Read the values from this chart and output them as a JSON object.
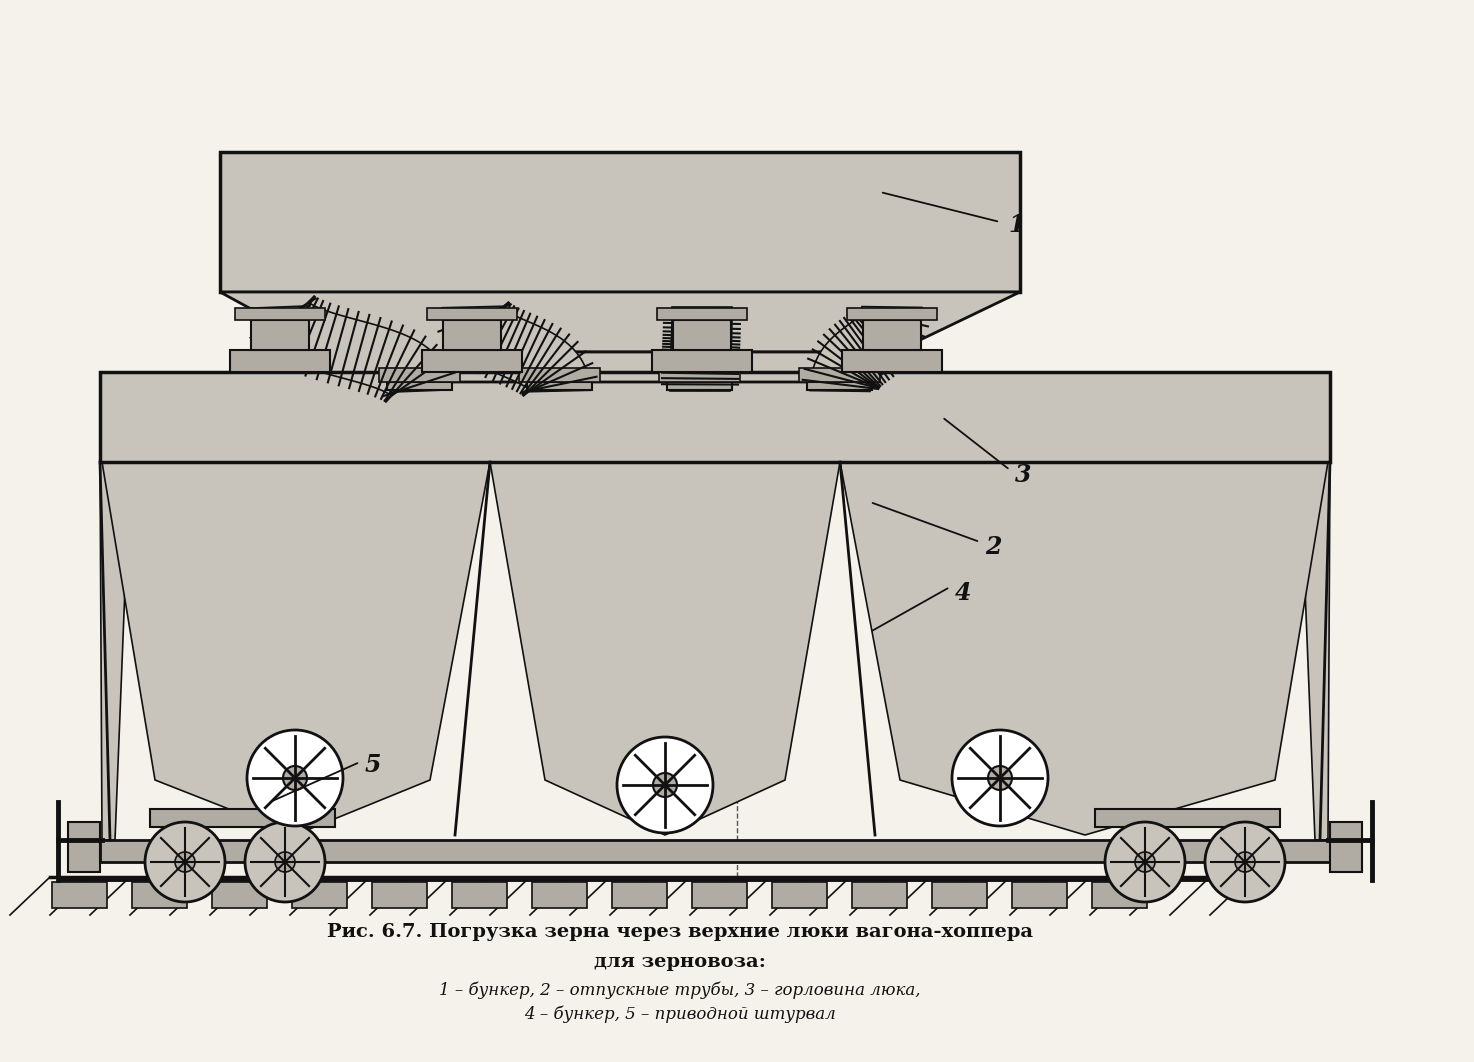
{
  "bg_color": "#f5f2ec",
  "line_color": "#111111",
  "fill_gray_light": "#c8c4bc",
  "fill_gray_mid": "#b0aca4",
  "fill_white": "#ffffff",
  "title_bold": "Рис. 6.7. Погрузка зерна через верхние люки вагона-хоппера",
  "title_bold2": "для зерновоза:",
  "title_italic1": "1 – бункер, 2 – отпускные трубы, 3 – горловина люка,",
  "title_italic2": "4 – бункер, 5 – приводной штурвал"
}
